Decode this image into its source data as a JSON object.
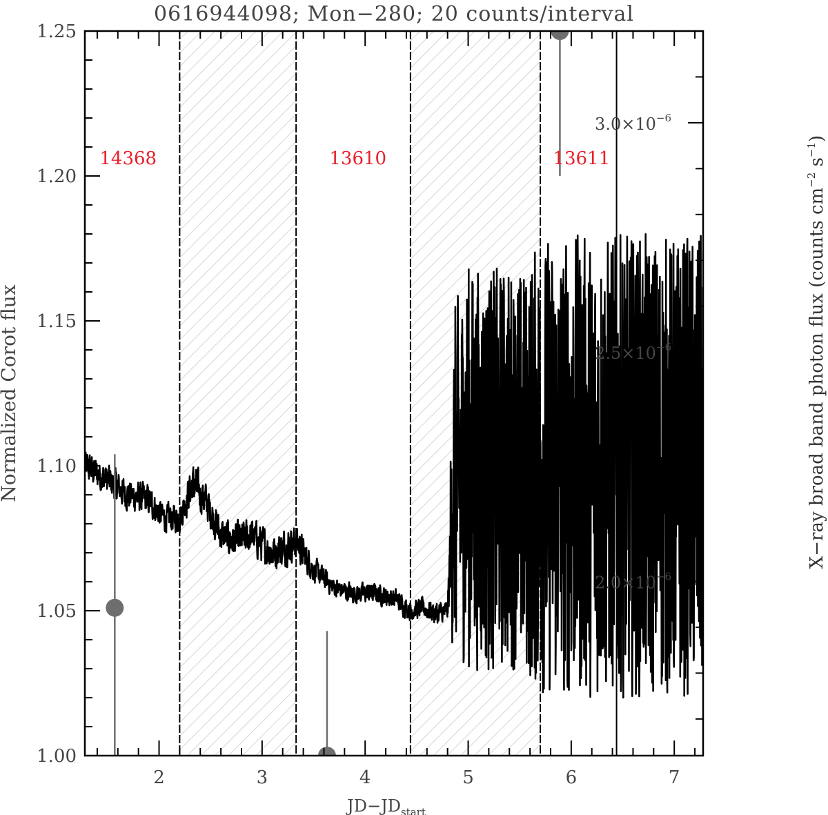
{
  "chart_data": {
    "type": "line",
    "title": "0616944098; Mon−280; 20 counts/interval",
    "xlabel_main": "JD−JD",
    "xlabel_sub": "start",
    "ylabel_left": "Normalized Corot flux",
    "ylabel_right": "X−ray broad band photon flux (counts cm",
    "ylabel_right_sup1": "−2",
    "ylabel_right_mid": " s",
    "ylabel_right_sup2": "−1",
    "ylabel_right_end": ")",
    "xlim": [
      1.28,
      7.28
    ],
    "ylim": [
      1.0,
      1.25
    ],
    "right_ylim": [
      1.62e-06,
      3.2e-06
    ],
    "x_ticks": [
      2,
      3,
      4,
      5,
      6,
      7
    ],
    "x_tick_labels": [
      "2",
      "3",
      "4",
      "5",
      "6",
      "7"
    ],
    "y_ticks": [
      1.0,
      1.05,
      1.1,
      1.15,
      1.2,
      1.25
    ],
    "y_tick_labels": [
      "1.00",
      "1.05",
      "1.10",
      "1.15",
      "1.20",
      "1.25"
    ],
    "right_ticks": [
      2e-06,
      2.5e-06,
      3e-06
    ],
    "right_tick_mantissas": [
      "2.0×10",
      "2.5×10",
      "3.0×10"
    ],
    "right_tick_exponents": [
      "−6",
      "−6",
      "−6"
    ],
    "vertical_lines": [
      2.2,
      3.33,
      4.44,
      5.7,
      6.44
    ],
    "shaded_regions": [
      [
        2.2,
        3.33
      ],
      [
        4.44,
        5.7
      ]
    ],
    "obs_labels": [
      {
        "text": "14368",
        "x": 1.7,
        "y": 1.205
      },
      {
        "text": "13610",
        "x": 3.93,
        "y": 1.205
      },
      {
        "text": "13611",
        "x": 6.1,
        "y": 1.205
      }
    ],
    "corot_flux_anchors": {
      "x": [
        1.28,
        1.5,
        1.7,
        1.9,
        2.05,
        2.2,
        2.32,
        2.45,
        2.6,
        2.75,
        2.9,
        3.1,
        3.33,
        3.5,
        3.7,
        3.9,
        4.1,
        4.3,
        4.44,
        4.55,
        4.7,
        4.8,
        4.86,
        5.0,
        5.2,
        5.4,
        5.55,
        5.7,
        6.0,
        6.3,
        6.6,
        6.9,
        7.28
      ],
      "y": [
        1.1,
        1.095,
        1.09,
        1.088,
        1.082,
        1.082,
        1.094,
        1.088,
        1.076,
        1.074,
        1.076,
        1.07,
        1.074,
        1.064,
        1.058,
        1.056,
        1.056,
        1.054,
        1.05,
        1.051,
        1.049,
        1.05,
        1.095,
        1.1,
        1.098,
        1.1,
        1.098,
        1.1,
        1.1,
        1.1,
        1.1,
        1.1,
        1.1
      ],
      "noise_amplitude": [
        0.008,
        0.008,
        0.008,
        0.008,
        0.007,
        0.007,
        0.01,
        0.009,
        0.009,
        0.009,
        0.009,
        0.009,
        0.009,
        0.006,
        0.005,
        0.005,
        0.005,
        0.005,
        0.005,
        0.005,
        0.006,
        0.005,
        0.06,
        0.07,
        0.07,
        0.07,
        0.07,
        0.08,
        0.08,
        0.08,
        0.08,
        0.08,
        0.08
      ]
    },
    "xray_points": [
      {
        "x": 1.57,
        "y": 1.051,
        "y_hi": 1.104,
        "y_lo": 1.0
      },
      {
        "x": 3.63,
        "y": 1.0,
        "y_hi": 1.043,
        "y_lo": 1.0
      },
      {
        "x": 5.89,
        "y": 1.25,
        "y_hi": 1.25,
        "y_lo": 1.2
      }
    ],
    "colors": {
      "curve": "#000000",
      "xray": "#6e6e6e",
      "obs_label": "#e8202a",
      "hatch": "#c8c8c8",
      "axis_text": "#444444"
    }
  }
}
